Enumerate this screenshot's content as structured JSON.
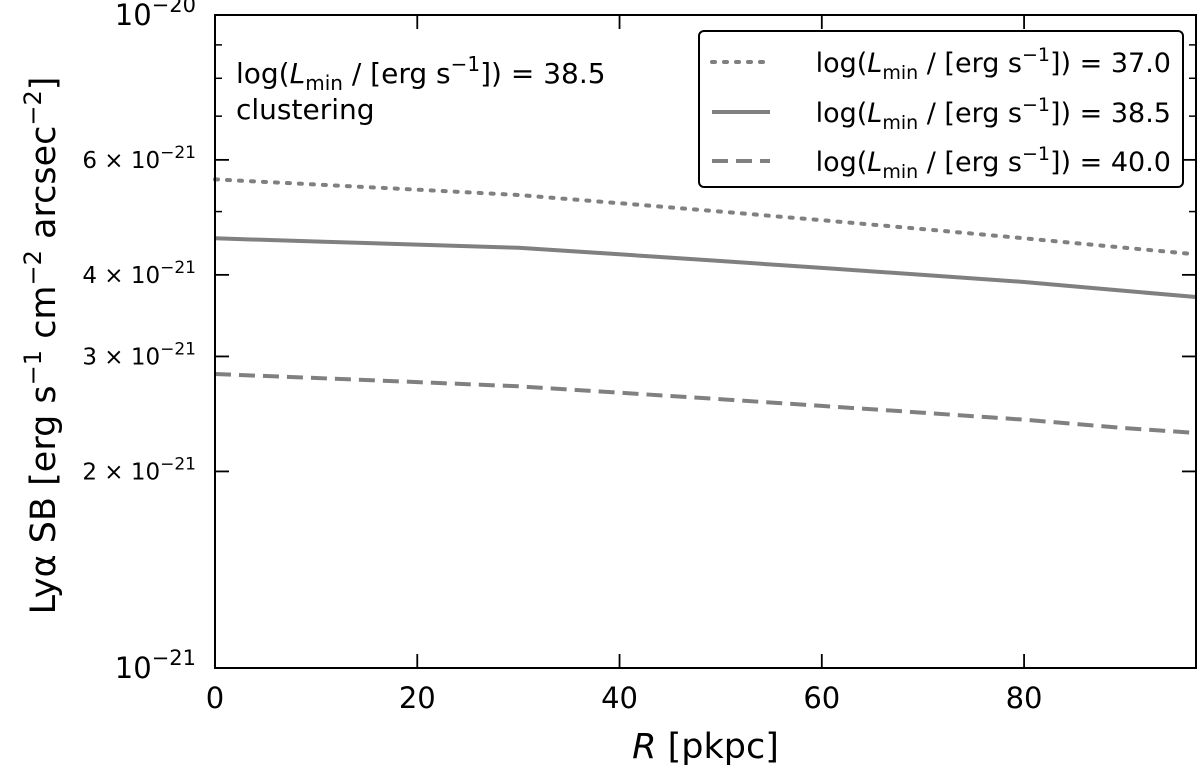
{
  "chart_data": {
    "type": "line",
    "title": "",
    "xlabel": "R [pkpc]",
    "xlabel_italic": "R",
    "xlabel_rest": " [pkpc]",
    "ylabel": "Lyα SB [erg s⁻¹ cm⁻² arcsec⁻²]",
    "xlim": [
      0,
      97
    ],
    "ylim": [
      1e-21,
      1e-20
    ],
    "y_scale": "log",
    "grid": false,
    "x_ticks": [
      0,
      20,
      40,
      60,
      80
    ],
    "x_tick_labels": [
      "0",
      "20",
      "40",
      "60",
      "80"
    ],
    "y_ticks": [
      {
        "value": 1e-20,
        "mant": "10",
        "exp": "−20"
      },
      {
        "value": 6e-21,
        "mant": "6 × 10",
        "exp": "−21"
      },
      {
        "value": 4e-21,
        "mant": "4 × 10",
        "exp": "−21"
      },
      {
        "value": 3e-21,
        "mant": "3 × 10",
        "exp": "−21"
      },
      {
        "value": 2e-21,
        "mant": "2 × 10",
        "exp": "−21"
      },
      {
        "value": 1e-21,
        "mant": "10",
        "exp": "−21"
      }
    ],
    "y_minor_ticks": [
      5e-21,
      7e-21,
      8e-21,
      9e-21
    ],
    "x": [
      0,
      10,
      20,
      30,
      40,
      50,
      60,
      70,
      80,
      90,
      97
    ],
    "series": [
      {
        "name": "log(Lmin / [erg s−1]) = 37.0",
        "style": "dotted",
        "values": [
          5.6e-21,
          5.5e-21,
          5.4e-21,
          5.3e-21,
          5.15e-21,
          5e-21,
          4.85e-21,
          4.7e-21,
          4.55e-21,
          4.4e-21,
          4.3e-21
        ]
      },
      {
        "name": "log(Lmin / [erg s−1]) = 38.5",
        "style": "solid",
        "values": [
          4.55e-21,
          4.5e-21,
          4.45e-21,
          4.4e-21,
          4.3e-21,
          4.2e-21,
          4.1e-21,
          4e-21,
          3.9e-21,
          3.78e-21,
          3.7e-21
        ]
      },
      {
        "name": "log(Lmin / [erg s−1]) = 40.0",
        "style": "dashed",
        "values": [
          2.82e-21,
          2.78e-21,
          2.74e-21,
          2.7e-21,
          2.64e-21,
          2.58e-21,
          2.52e-21,
          2.46e-21,
          2.4e-21,
          2.33e-21,
          2.29e-21
        ]
      }
    ],
    "series_color": "#808080",
    "legend_position": "top-right",
    "legend": [
      {
        "prefix": "log(",
        "italic": "L",
        "sub": "min",
        "mid": " / [erg s",
        "sup": "−1",
        "suffix": "]) = 37.0",
        "style": "dotted"
      },
      {
        "prefix": "log(",
        "italic": "L",
        "sub": "min",
        "mid": " / [erg s",
        "sup": "−1",
        "suffix": "]) = 38.5",
        "style": "solid"
      },
      {
        "prefix": "log(",
        "italic": "L",
        "sub": "min",
        "mid": " / [erg s",
        "sup": "−1",
        "suffix": "]) = 40.0",
        "style": "dashed"
      }
    ],
    "annotation": {
      "prefix": "log(",
      "italic": "L",
      "sub": "min",
      "mid": " / [erg s",
      "sup": "−1",
      "suffix": "]) = 38.5",
      "line2": "clustering"
    },
    "ylabel_parts": {
      "a": "Lyα SB [erg s",
      "sup1": "−1",
      "b": " cm",
      "sup2": "−2",
      "c": " arcsec",
      "sup3": "−2",
      "d": "]"
    }
  }
}
